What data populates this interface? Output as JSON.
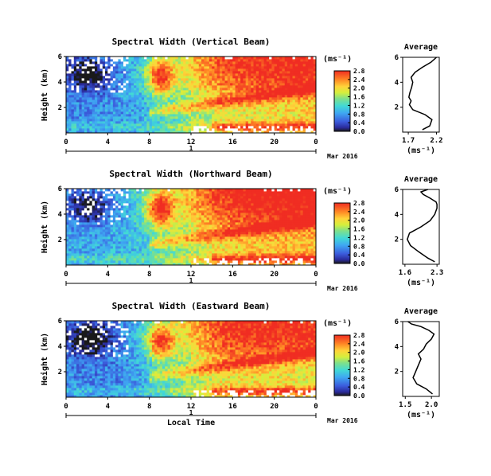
{
  "chart_data": [
    {
      "type": "heatmap",
      "title": "Spectral Width (Vertical Beam)",
      "ylabel": "Height (km)",
      "xticks": [
        "0",
        "4",
        "8",
        "12",
        "16",
        "20",
        "0"
      ],
      "xlim": [
        0,
        24
      ],
      "yticks": [
        "6",
        "4",
        "2"
      ],
      "ylim": [
        0,
        6
      ],
      "day_label": "1",
      "date_label": "Mar 2016",
      "colorbar": {
        "unit": "(ms⁻¹)",
        "ticks": [
          "2.8",
          "2.4",
          "2.0",
          "1.6",
          "1.2",
          "0.8",
          "0.4",
          "0.0"
        ],
        "range": [
          0.0,
          2.8
        ]
      },
      "profile": {
        "title": "Average",
        "xlabel": "(ms⁻¹)",
        "xticks": [
          "1.7",
          "2.2"
        ],
        "xlim": [
          1.6,
          2.25
        ],
        "yticks": [
          "6",
          "4",
          "2"
        ],
        "ylim": [
          0,
          6
        ],
        "x": [
          1.95,
          2.08,
          2.12,
          2.0,
          1.78,
          1.72,
          1.75,
          1.71,
          1.73,
          1.76,
          1.78,
          1.75,
          1.82,
          1.95,
          2.1,
          2.2
        ],
        "y": [
          0.2,
          0.5,
          1.0,
          1.4,
          1.8,
          2.2,
          2.5,
          2.8,
          3.2,
          3.6,
          4.0,
          4.4,
          4.8,
          5.2,
          5.6,
          6.0
        ]
      }
    },
    {
      "type": "heatmap",
      "title": "Spectral Width (Northward Beam)",
      "ylabel": "Height (km)",
      "xticks": [
        "0",
        "4",
        "8",
        "12",
        "16",
        "20",
        "0"
      ],
      "xlim": [
        0,
        24
      ],
      "yticks": [
        "6",
        "4",
        "2"
      ],
      "ylim": [
        0,
        6
      ],
      "day_label": "1",
      "date_label": "Mar 2016",
      "colorbar": {
        "unit": "(ms⁻¹)",
        "ticks": [
          "2.8",
          "2.4",
          "2.0",
          "1.6",
          "1.2",
          "0.8",
          "0.4",
          "0.0"
        ],
        "range": [
          0.0,
          2.8
        ]
      },
      "profile": {
        "title": "Average",
        "xlabel": "(ms⁻¹)",
        "xticks": [
          "1.6",
          "2.3"
        ],
        "xlim": [
          1.55,
          2.35
        ],
        "yticks": [
          "6",
          "4",
          "2"
        ],
        "ylim": [
          0,
          6
        ],
        "x": [
          2.25,
          2.1,
          1.9,
          1.72,
          1.65,
          1.7,
          1.95,
          2.15,
          2.25,
          2.3,
          2.3,
          2.28,
          2.15,
          2.0,
          1.95,
          2.1
        ],
        "y": [
          0.2,
          0.5,
          1.0,
          1.5,
          2.0,
          2.5,
          3.0,
          3.5,
          4.0,
          4.5,
          4.8,
          5.0,
          5.3,
          5.6,
          5.8,
          6.0
        ]
      }
    },
    {
      "type": "heatmap",
      "title": "Spectral Width (Eastward Beam)",
      "ylabel": "Height (km)",
      "xticks": [
        "0",
        "4",
        "8",
        "12",
        "16",
        "20",
        "0"
      ],
      "xlim": [
        0,
        24
      ],
      "yticks": [
        "6",
        "4",
        "2"
      ],
      "ylim": [
        0,
        6
      ],
      "day_label": "1",
      "date_label": "Mar 2016",
      "xlabel": "Local Time",
      "colorbar": {
        "unit": "(ms⁻¹)",
        "ticks": [
          "2.8",
          "2.4",
          "2.0",
          "1.6",
          "1.2",
          "0.8",
          "0.4",
          "0.0"
        ],
        "range": [
          0.0,
          2.8
        ]
      },
      "profile": {
        "title": "Average",
        "xlabel": "(ms⁻¹)",
        "xticks": [
          "1.5",
          "2.0"
        ],
        "xlim": [
          1.45,
          2.15
        ],
        "yticks": [
          "6",
          "4",
          "2"
        ],
        "ylim": [
          0,
          6
        ],
        "x": [
          2.02,
          1.9,
          1.72,
          1.65,
          1.7,
          1.75,
          1.8,
          1.75,
          1.85,
          1.9,
          2.0,
          2.05,
          1.95,
          1.8,
          1.62,
          1.55
        ],
        "y": [
          0.2,
          0.6,
          1.0,
          1.5,
          2.0,
          2.5,
          3.0,
          3.4,
          3.8,
          4.2,
          4.6,
          5.0,
          5.3,
          5.6,
          5.8,
          6.0
        ]
      }
    }
  ]
}
